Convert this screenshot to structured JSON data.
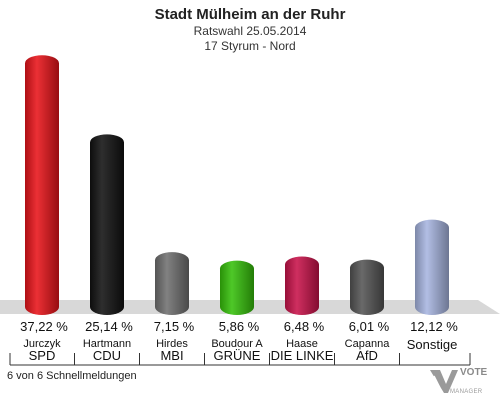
{
  "header": {
    "title": "Stadt Mülheim an der Ruhr",
    "subtitle": "Ratswahl 25.05.2014",
    "district": "17 Styrum - Nord"
  },
  "footer": {
    "reported": "6 von 6 Schnellmeldungen"
  },
  "logo": {
    "word": "VOTE",
    "word2": "MANAGER",
    "icon": "vote-manager-logo-icon"
  },
  "chart_data": {
    "type": "bar",
    "categories": [
      "SPD",
      "CDU",
      "MBI",
      "GRÜNE",
      "DIE LINKE",
      "AfD",
      "Sonstige"
    ],
    "candidates": [
      "Jurczyk",
      "Hartmann",
      "Hirdes",
      "Boudour A",
      "Haase",
      "Capanna",
      ""
    ],
    "labels": [
      "37,22 %",
      "25,14 %",
      "7,15 %",
      "5,86 %",
      "6,48 %",
      "6,01 %",
      "12,12 %"
    ],
    "values": [
      37.22,
      25.14,
      7.15,
      5.86,
      6.48,
      6.01,
      12.12
    ],
    "colors": [
      "#e8141a",
      "#111111",
      "#707070",
      "#36c10b",
      "#c9134a",
      "#555555",
      "#a7b5e0"
    ],
    "ylim": [
      0,
      40
    ],
    "grid": false
  }
}
